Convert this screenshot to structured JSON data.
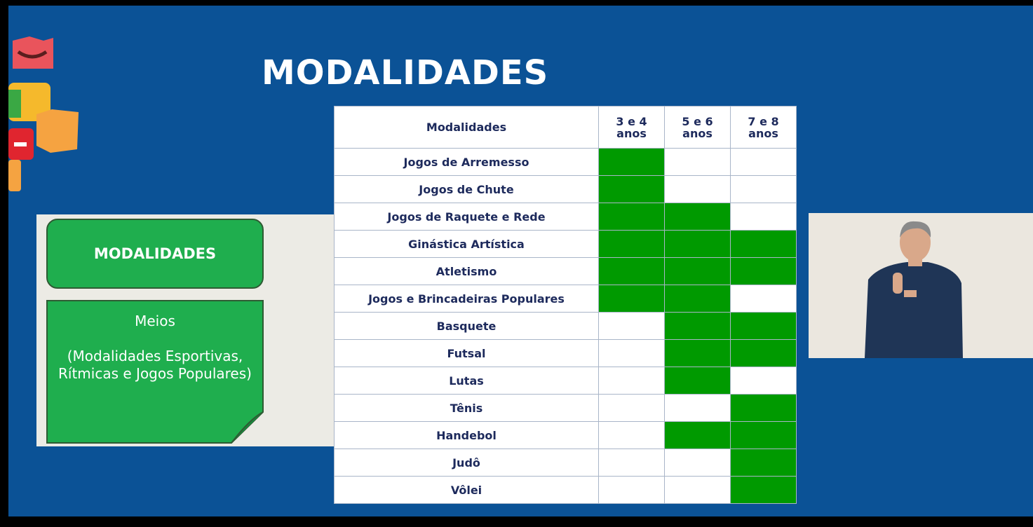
{
  "title": "MODALIDADES",
  "side_panel": {
    "heading": "MODALIDADES",
    "subheading": "Meios",
    "description": "(Modalidades Esportivas, Rítmicas e Jogos Populares)"
  },
  "table": {
    "header": {
      "label": "Modalidades",
      "columns": [
        [
          "3 e 4",
          "anos"
        ],
        [
          "5 e 6",
          "anos"
        ],
        [
          "7 e 8",
          "anos"
        ]
      ]
    },
    "rows": [
      {
        "label": "Jogos de Arremesso",
        "marked": [
          true,
          false,
          false
        ]
      },
      {
        "label": "Jogos de Chute",
        "marked": [
          true,
          false,
          false
        ]
      },
      {
        "label": "Jogos de Raquete e Rede",
        "marked": [
          true,
          true,
          false
        ]
      },
      {
        "label": "Ginástica Artística",
        "marked": [
          true,
          true,
          true
        ]
      },
      {
        "label": "Atletismo",
        "marked": [
          true,
          true,
          true
        ]
      },
      {
        "label": "Jogos e Brincadeiras Populares",
        "marked": [
          true,
          true,
          false
        ]
      },
      {
        "label": "Basquete",
        "marked": [
          false,
          true,
          true
        ]
      },
      {
        "label": "Futsal",
        "marked": [
          false,
          true,
          true
        ]
      },
      {
        "label": "Lutas",
        "marked": [
          false,
          true,
          false
        ]
      },
      {
        "label": "Tênis",
        "marked": [
          false,
          false,
          true
        ]
      },
      {
        "label": "Handebol",
        "marked": [
          false,
          true,
          true
        ]
      },
      {
        "label": "Judô",
        "marked": [
          false,
          false,
          true
        ]
      },
      {
        "label": "Vôlei",
        "marked": [
          false,
          false,
          true
        ]
      }
    ]
  }
}
